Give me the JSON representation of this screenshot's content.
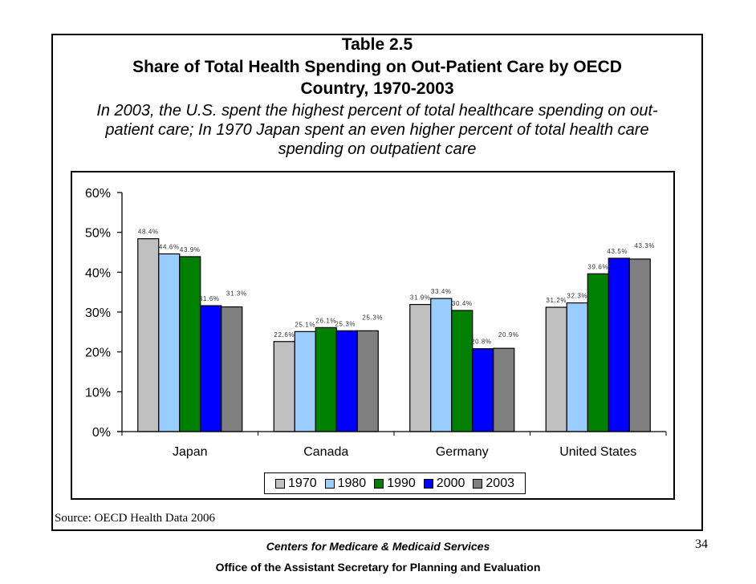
{
  "header": {
    "table_label": "Table  2.5",
    "title_line1": "Share of Total Health Spending on Out-Patient Care by OECD",
    "title_line2": "Country, 1970-2003",
    "subtitle_line1": "In 2003, the U.S. spent the highest percent of total healthcare spending on out-",
    "subtitle_line2": "patient care; In 1970 Japan spent an even higher percent of total health care",
    "subtitle_line3": "spending on outpatient care"
  },
  "source": "Source: OECD Health Data 2006",
  "footer": {
    "org1": "Centers for Medicare & Medicaid Services",
    "org2": "Office of the Assistant Secretary for Planning and Evaluation",
    "page_number": "34"
  },
  "chart_data": {
    "type": "bar",
    "title": "Share of Total Health Spending on Out-Patient Care by OECD Country, 1970-2003",
    "xlabel": "",
    "ylabel": "",
    "categories": [
      "Japan",
      "Canada",
      "Germany",
      "United States"
    ],
    "ylim": [
      0,
      60
    ],
    "yticks": [
      0,
      10,
      20,
      30,
      40,
      50,
      60
    ],
    "ytick_labels": [
      "0%",
      "10%",
      "20%",
      "30%",
      "40%",
      "50%",
      "60%"
    ],
    "grid": false,
    "legend_position": "bottom",
    "series": [
      {
        "name": "1970",
        "color": "#c0c0c0",
        "values": [
          48.4,
          22.6,
          31.9,
          31.2
        ],
        "labels": [
          "48.4%",
          "22.6%",
          "31.9%",
          "31.2%"
        ]
      },
      {
        "name": "1980",
        "color": "#99ccff",
        "values": [
          44.6,
          25.1,
          33.4,
          32.3
        ],
        "labels": [
          "44.6%",
          "25.1%",
          "33.4%",
          "32.3%"
        ]
      },
      {
        "name": "1990",
        "color": "#008000",
        "values": [
          43.9,
          26.1,
          30.4,
          39.6
        ],
        "labels": [
          "43.9%",
          "26.1%",
          "30.4%",
          "39.6%"
        ]
      },
      {
        "name": "2000",
        "color": "#0000ff",
        "values": [
          31.6,
          25.3,
          20.8,
          43.5
        ],
        "labels": [
          "31.6%",
          "25.3%",
          "20.8%",
          "43.5%"
        ]
      },
      {
        "name": "2003",
        "color": "#808080",
        "values": [
          31.3,
          25.3,
          20.9,
          43.3
        ],
        "labels": [
          "31.3%",
          "25.3%",
          "20.9%",
          "43.3%"
        ]
      }
    ]
  }
}
